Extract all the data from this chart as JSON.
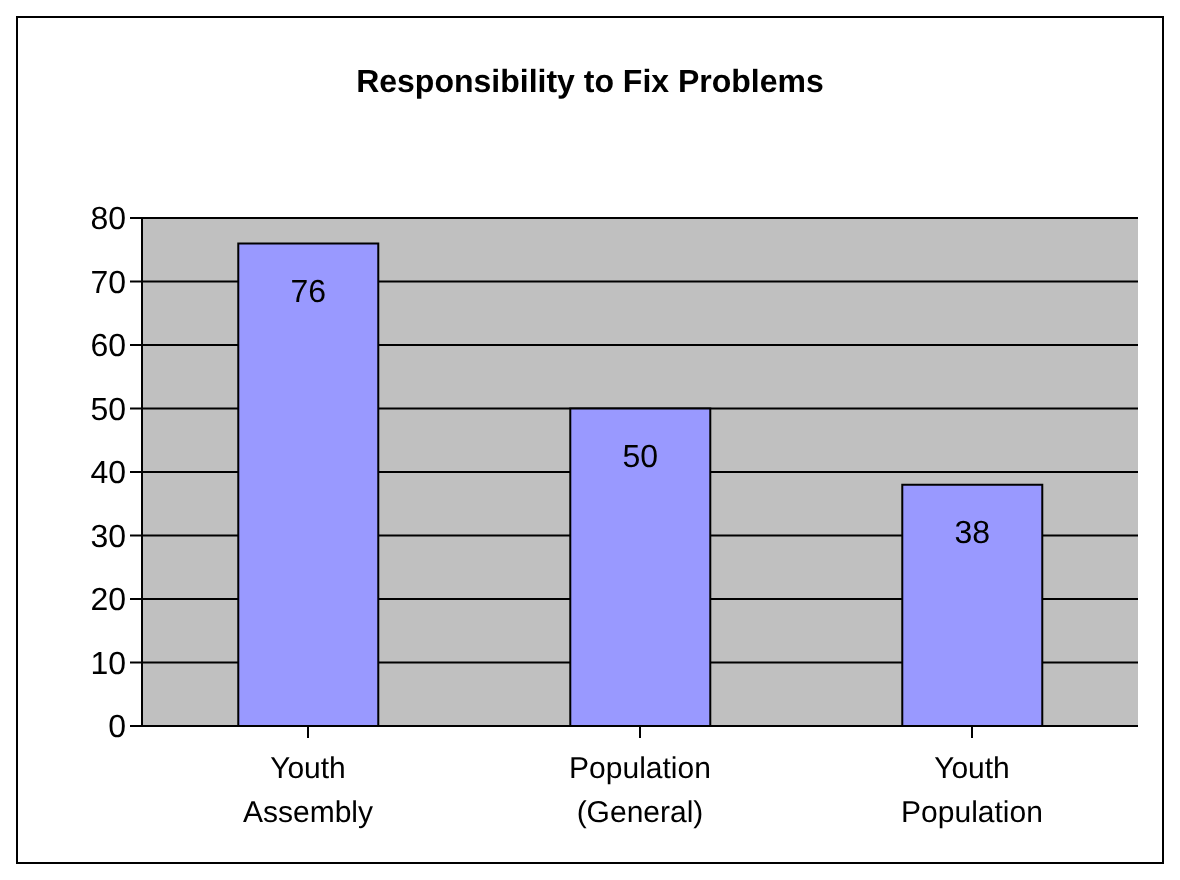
{
  "chart_data": {
    "type": "bar",
    "title": "Responsibility to Fix Problems",
    "categories": [
      "Youth Assembly",
      "Population (General)",
      "Youth Population"
    ],
    "values": [
      76,
      50,
      38
    ],
    "color": "#9999ff",
    "ylim": [
      0,
      80
    ],
    "yticks": [
      0,
      10,
      20,
      30,
      40,
      50,
      60,
      70,
      80
    ],
    "grid": "y",
    "data_labels": true
  }
}
